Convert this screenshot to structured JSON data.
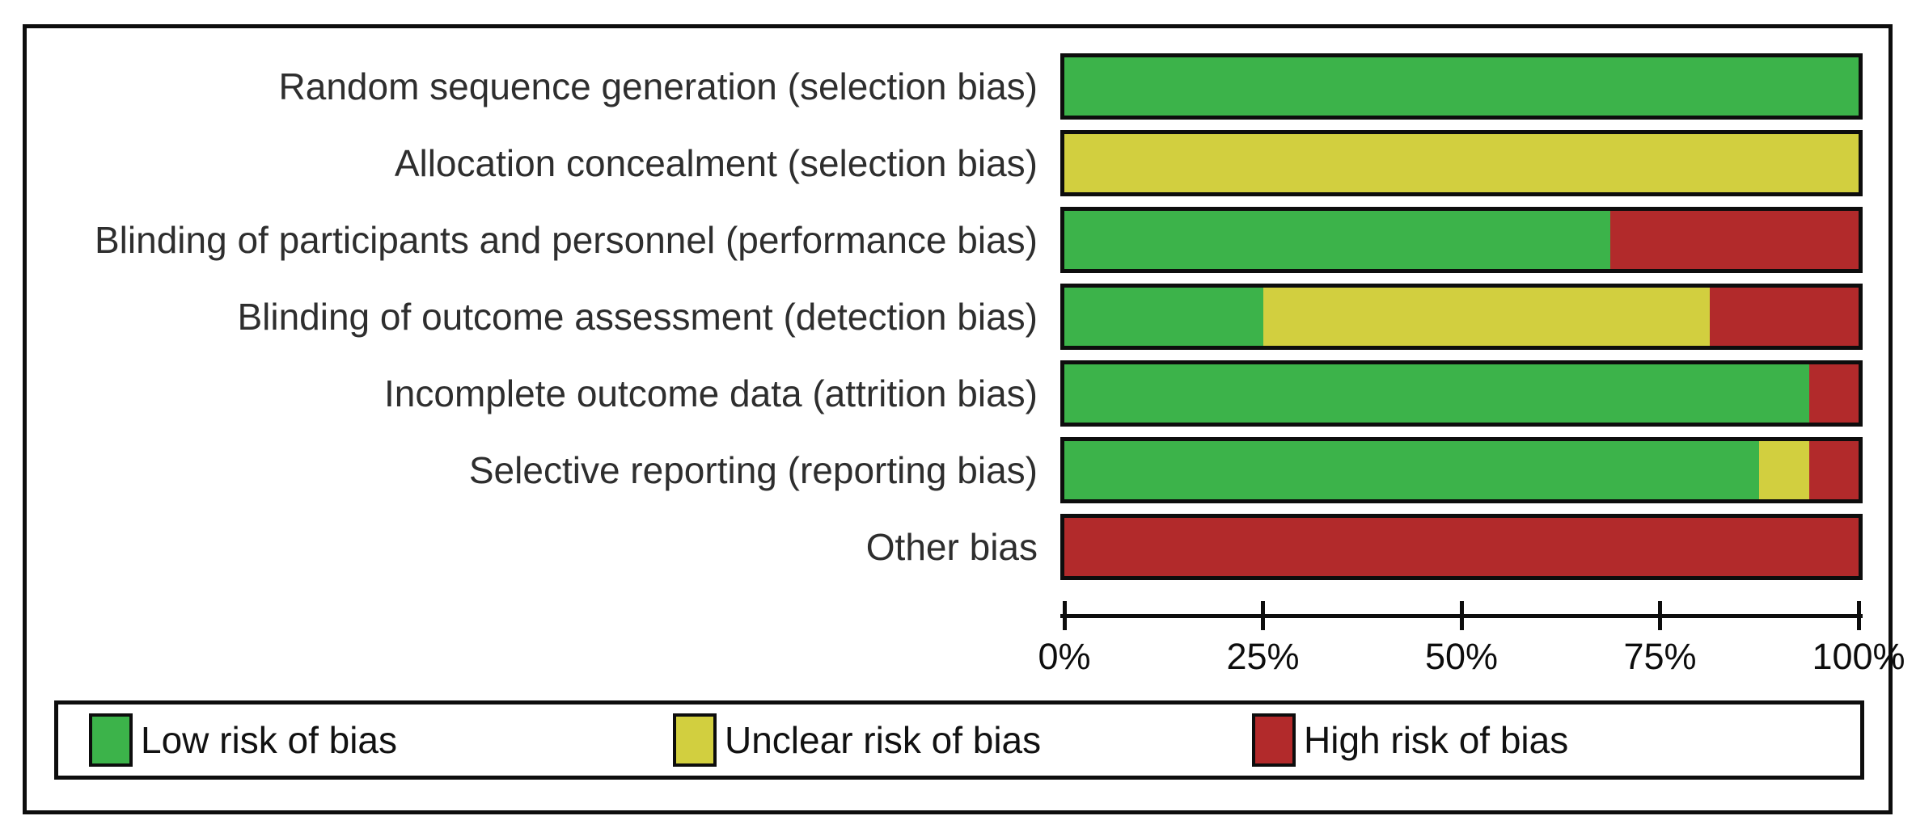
{
  "chart_data": {
    "type": "bar",
    "orientation": "horizontal_stacked",
    "title": "",
    "categories": [
      "Random sequence generation (selection bias)",
      "Allocation concealment (selection bias)",
      "Blinding of participants and personnel (performance bias)",
      "Blinding of outcome assessment (detection bias)",
      "Incomplete outcome data (attrition bias)",
      "Selective reporting (reporting bias)",
      "Other bias"
    ],
    "series": [
      {
        "name": "Low risk of bias",
        "color": "#3CB34A",
        "values": [
          100,
          0,
          68.75,
          25,
          93.75,
          87.5,
          0
        ]
      },
      {
        "name": "Unclear risk of bias",
        "color": "#D2CF3F",
        "values": [
          0,
          100,
          0,
          56.25,
          0,
          6.25,
          0
        ]
      },
      {
        "name": "High risk of bias",
        "color": "#B22A2B",
        "values": [
          0,
          0,
          31.25,
          18.75,
          6.25,
          6.25,
          100
        ]
      }
    ],
    "x_ticks": [
      "0%",
      "25%",
      "50%",
      "75%",
      "100%"
    ],
    "xlim": [
      0,
      100
    ],
    "grid": false,
    "legend_position": "bottom"
  },
  "style": {
    "background": "#ffffff",
    "frame_border_color": "#0d0d0d",
    "bar_border_color": "#0d0d0d",
    "category_label_color": "#2e2e2e",
    "axis_label_color": "#0d0d0d"
  }
}
